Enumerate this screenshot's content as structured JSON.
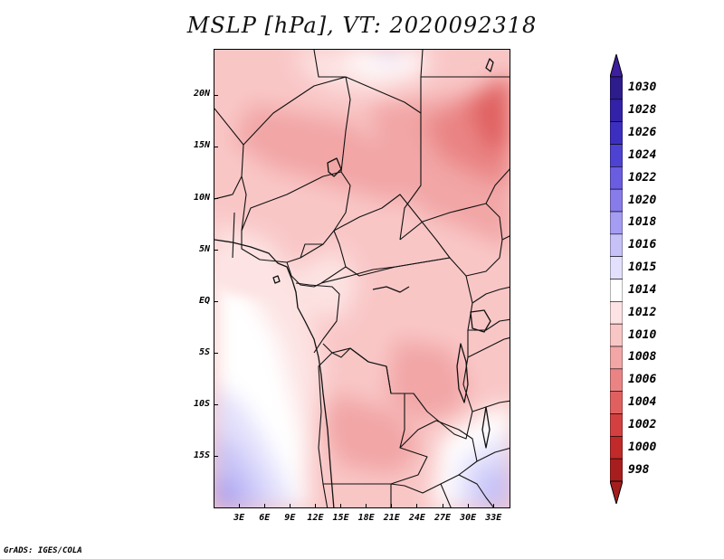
{
  "title": "MSLP [hPa], VT: 2020092318",
  "credit": "GrADS: IGES/COLA",
  "map": {
    "lon_range": [
      0,
      35
    ],
    "lat_range": [
      -20,
      24.5
    ],
    "x_ticks": [
      {
        "value": 3,
        "label": "3E"
      },
      {
        "value": 6,
        "label": "6E"
      },
      {
        "value": 9,
        "label": "9E"
      },
      {
        "value": 12,
        "label": "12E"
      },
      {
        "value": 15,
        "label": "15E"
      },
      {
        "value": 18,
        "label": "18E"
      },
      {
        "value": 21,
        "label": "21E"
      },
      {
        "value": 24,
        "label": "24E"
      },
      {
        "value": 27,
        "label": "27E"
      },
      {
        "value": 30,
        "label": "30E"
      },
      {
        "value": 33,
        "label": "33E"
      }
    ],
    "y_ticks": [
      {
        "value": 20,
        "label": "20N"
      },
      {
        "value": 15,
        "label": "15N"
      },
      {
        "value": 10,
        "label": "10N"
      },
      {
        "value": 5,
        "label": "5N"
      },
      {
        "value": 0,
        "label": "EQ"
      },
      {
        "value": -5,
        "label": "5S"
      },
      {
        "value": -10,
        "label": "10S"
      },
      {
        "value": -15,
        "label": "15S"
      }
    ]
  },
  "colorbar": {
    "top_color": "#3c1e9e",
    "bottom_color": "#a51e1e",
    "levels": [
      {
        "label": "1030",
        "color": "#2d1c8c"
      },
      {
        "label": "1028",
        "color": "#3322a8"
      },
      {
        "label": "1026",
        "color": "#3c2fc0"
      },
      {
        "label": "1024",
        "color": "#4e42d2"
      },
      {
        "label": "1022",
        "color": "#6a5de0"
      },
      {
        "label": "1020",
        "color": "#877ce9"
      },
      {
        "label": "1018",
        "color": "#a59df2"
      },
      {
        "label": "1016",
        "color": "#c6c2f8"
      },
      {
        "label": "1015",
        "color": "#e2e0fc"
      },
      {
        "label": "1014",
        "color": "#ffffff"
      },
      {
        "label": "1012",
        "color": "#fde3e3"
      },
      {
        "label": "1010",
        "color": "#f9c6c6"
      },
      {
        "label": "1008",
        "color": "#f2a6a6"
      },
      {
        "label": "1006",
        "color": "#ea8484"
      },
      {
        "label": "1004",
        "color": "#e06060"
      },
      {
        "label": "1002",
        "color": "#d44040"
      },
      {
        "label": "1000",
        "color": "#c02a2a"
      },
      {
        "label": "998",
        "color": "#a81e1e"
      }
    ]
  }
}
